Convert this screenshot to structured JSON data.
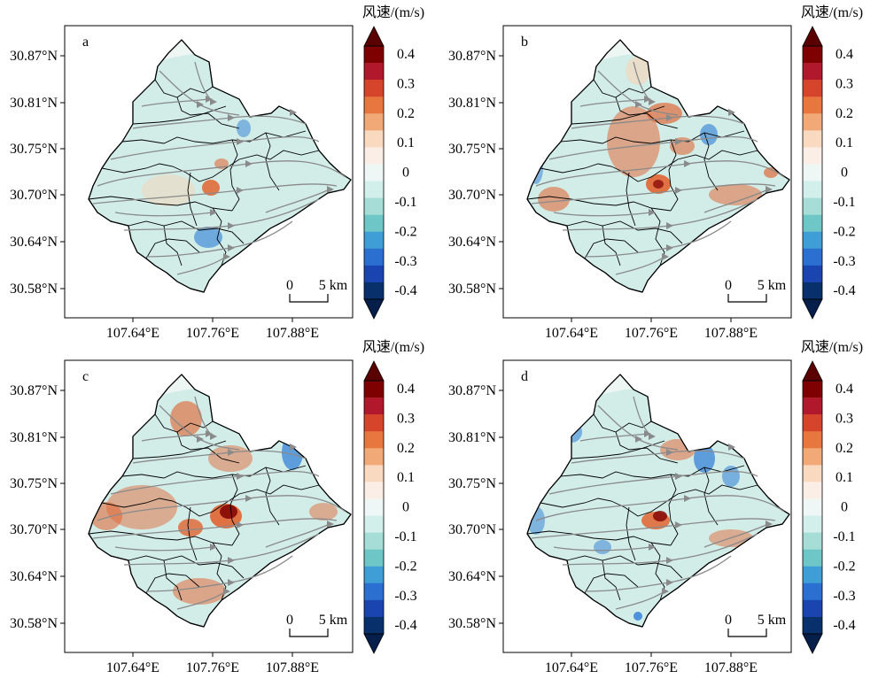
{
  "figure": {
    "colorbar_title": "风速/(m/s)",
    "colorbar_ticks": [
      "0.4",
      "0.3",
      "0.2",
      "0.1",
      "0",
      "-0.1",
      "-0.2",
      "-0.3",
      "-0.4"
    ],
    "lat_ticks": [
      "30.87°N",
      "30.81°N",
      "30.75°N",
      "30.70°N",
      "30.64°N",
      "30.58°N"
    ],
    "lon_ticks": [
      "107.64°E",
      "107.76°E",
      "107.88°E"
    ],
    "scalebar": {
      "zero": "0",
      "label": "5 km"
    },
    "colors": {
      "strong_neg": "#08306b",
      "neg": "#2c7bd6",
      "weak_neg": "#9fdcd2",
      "neutral": "#eef6f4",
      "weak_pos": "#f6d3b6",
      "pos": "#e06a3a",
      "strong_pos": "#7f0000",
      "streamline": "#8a8a8a"
    },
    "panels": [
      {
        "letter": "a"
      },
      {
        "letter": "b"
      },
      {
        "letter": "c"
      },
      {
        "letter": "d"
      }
    ]
  }
}
